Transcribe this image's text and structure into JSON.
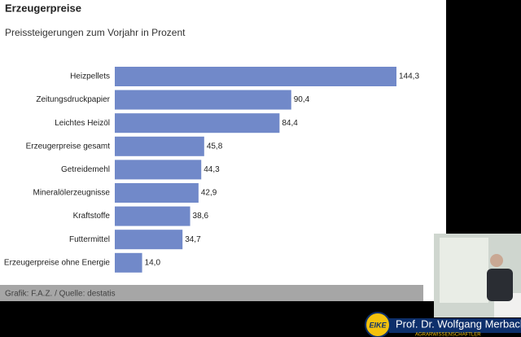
{
  "chart_data": {
    "type": "bar",
    "orientation": "horizontal",
    "title": "Erzeugerpreise",
    "subtitle": "Preissteigerungen zum Vorjahr in Prozent",
    "categories": [
      "Heizpellets",
      "Zeitungsdruckpapier",
      "Leichtes Heizöl",
      "Erzeugerpreise gesamt",
      "Getreidemehl",
      "Mineralölerzeugnisse",
      "Kraftstoffe",
      "Futtermittel",
      "Erzeugerpreise ohne Energie"
    ],
    "values": [
      144.3,
      90.4,
      84.4,
      45.8,
      44.3,
      42.9,
      38.6,
      34.7,
      14.0
    ],
    "value_labels": [
      "144,3",
      "90,4",
      "84,4",
      "45,8",
      "44,3",
      "42,9",
      "38,6",
      "34,7",
      "14,0"
    ],
    "color": "#7189c9",
    "source": "Grafik: F.A.Z. / Quelle: destatis"
  },
  "overlay": {
    "speaker": "Prof. Dr. Wolfgang Merbach",
    "role": "AGRARWISSENSCHAFTLER",
    "logo": "EIKE"
  }
}
